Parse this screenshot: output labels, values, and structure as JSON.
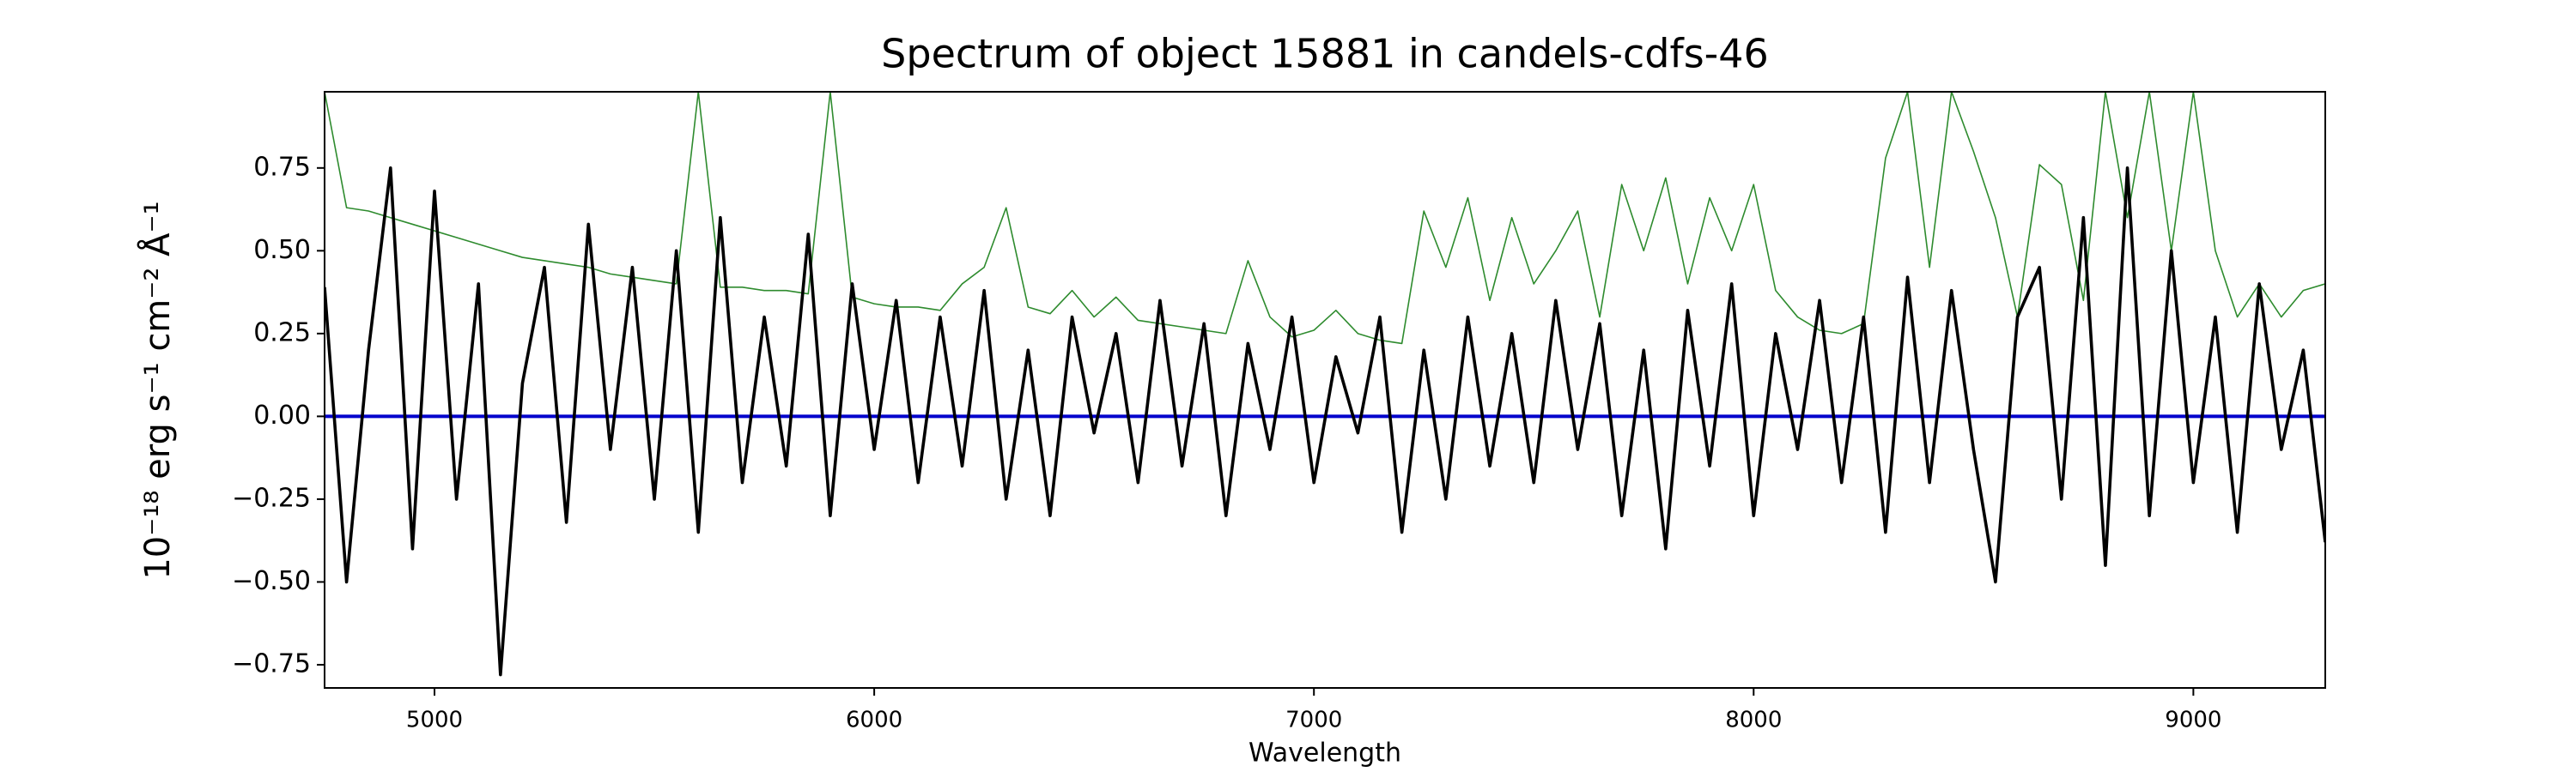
{
  "chart_data": {
    "type": "line",
    "title": "Spectrum of object 15881 in candels-cdfs-46",
    "xlabel": "Wavelength",
    "ylabel": "10⁻¹⁸ erg s⁻¹ cm⁻² Å⁻¹",
    "x": [
      4750,
      4800,
      4850,
      4900,
      4950,
      5000,
      5050,
      5100,
      5150,
      5200,
      5250,
      5300,
      5350,
      5400,
      5450,
      5500,
      5550,
      5600,
      5650,
      5700,
      5750,
      5800,
      5850,
      5900,
      5950,
      6000,
      6050,
      6100,
      6150,
      6200,
      6250,
      6300,
      6350,
      6400,
      6450,
      6500,
      6550,
      6600,
      6650,
      6700,
      6750,
      6800,
      6850,
      6900,
      6950,
      7000,
      7050,
      7100,
      7150,
      7200,
      7250,
      7300,
      7350,
      7400,
      7450,
      7500,
      7550,
      7600,
      7650,
      7700,
      7750,
      7800,
      7850,
      7900,
      7950,
      8000,
      8050,
      8100,
      8150,
      8200,
      8250,
      8300,
      8350,
      8400,
      8450,
      8500,
      8550,
      8600,
      8650,
      8700,
      8750,
      8800,
      8850,
      8900,
      8950,
      9000,
      9050,
      9100,
      9150,
      9200,
      9250,
      9300
    ],
    "series": [
      {
        "color": "#2e8b2e",
        "values": [
          0.98,
          0.63,
          0.62,
          0.6,
          0.58,
          0.56,
          0.54,
          0.52,
          0.5,
          0.48,
          0.47,
          0.46,
          0.45,
          0.43,
          0.42,
          0.41,
          0.4,
          0.98,
          0.39,
          0.39,
          0.38,
          0.38,
          0.37,
          0.98,
          0.36,
          0.34,
          0.33,
          0.33,
          0.32,
          0.4,
          0.45,
          0.63,
          0.33,
          0.31,
          0.38,
          0.3,
          0.36,
          0.29,
          0.28,
          0.27,
          0.26,
          0.25,
          0.47,
          0.3,
          0.24,
          0.26,
          0.32,
          0.25,
          0.23,
          0.22,
          0.62,
          0.45,
          0.66,
          0.35,
          0.6,
          0.4,
          0.5,
          0.62,
          0.3,
          0.7,
          0.5,
          0.72,
          0.4,
          0.66,
          0.5,
          0.7,
          0.38,
          0.3,
          0.26,
          0.25,
          0.28,
          0.78,
          0.98,
          0.45,
          0.98,
          0.8,
          0.6,
          0.3,
          0.76,
          0.7,
          0.35,
          0.98,
          0.6,
          0.98,
          0.5,
          0.98,
          0.5,
          0.3,
          0.4,
          0.3,
          0.38,
          0.4
        ]
      },
      {
        "color": "#0000cc",
        "values": [
          0,
          0,
          0,
          0,
          0,
          0,
          0,
          0,
          0,
          0,
          0,
          0,
          0,
          0,
          0,
          0,
          0,
          0,
          0,
          0,
          0,
          0,
          0,
          0,
          0,
          0,
          0,
          0,
          0,
          0,
          0,
          0,
          0,
          0,
          0,
          0,
          0,
          0,
          0,
          0,
          0,
          0,
          0,
          0,
          0,
          0,
          0,
          0,
          0,
          0,
          0,
          0,
          0,
          0,
          0,
          0,
          0,
          0,
          0,
          0,
          0,
          0,
          0,
          0,
          0,
          0,
          0,
          0,
          0,
          0,
          0,
          0,
          0,
          0,
          0,
          0,
          0,
          0,
          0,
          0,
          0,
          0,
          0,
          0,
          0,
          0,
          0,
          0,
          0,
          0,
          0,
          0
        ]
      },
      {
        "color": "#000000",
        "values": [
          0.39,
          -0.5,
          0.2,
          0.75,
          -0.4,
          0.68,
          -0.25,
          0.4,
          -0.78,
          0.1,
          0.45,
          -0.32,
          0.58,
          -0.1,
          0.45,
          -0.25,
          0.5,
          -0.35,
          0.6,
          -0.2,
          0.3,
          -0.15,
          0.55,
          -0.3,
          0.4,
          -0.1,
          0.35,
          -0.2,
          0.3,
          -0.15,
          0.38,
          -0.25,
          0.2,
          -0.3,
          0.3,
          -0.05,
          0.25,
          -0.2,
          0.35,
          -0.15,
          0.28,
          -0.3,
          0.22,
          -0.1,
          0.3,
          -0.2,
          0.18,
          -0.05,
          0.3,
          -0.35,
          0.2,
          -0.25,
          0.3,
          -0.15,
          0.25,
          -0.2,
          0.35,
          -0.1,
          0.28,
          -0.3,
          0.2,
          -0.4,
          0.32,
          -0.15,
          0.4,
          -0.3,
          0.25,
          -0.1,
          0.35,
          -0.2,
          0.3,
          -0.35,
          0.42,
          -0.2,
          0.38,
          -0.1,
          -0.5,
          0.3,
          0.45,
          -0.25,
          0.6,
          -0.45,
          0.75,
          -0.3,
          0.5,
          -0.2,
          0.3,
          -0.35,
          0.4,
          -0.1,
          0.2,
          -0.38
        ]
      }
    ],
    "xlim": [
      4750,
      9300
    ],
    "xticks": [
      5000,
      6000,
      7000,
      8000,
      9000
    ],
    "ylim": [
      -0.82,
      0.98
    ],
    "yticks": [
      {
        "value": -0.75,
        "label": "−0.75"
      },
      {
        "value": -0.5,
        "label": "−0.50"
      },
      {
        "value": -0.25,
        "label": "−0.25"
      },
      {
        "value": 0,
        "label": "0.00"
      },
      {
        "value": 0.25,
        "label": "0.25"
      },
      {
        "value": 0.5,
        "label": "0.50"
      },
      0.75
    ]
  }
}
